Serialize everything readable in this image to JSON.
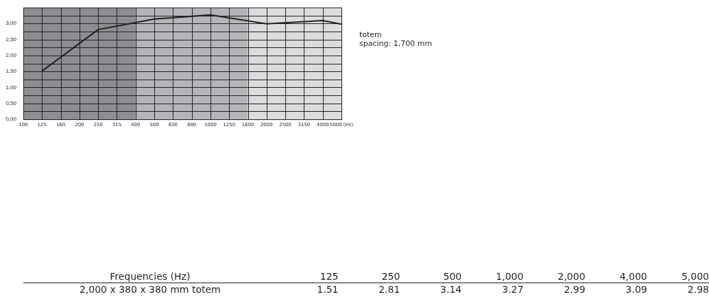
{
  "chart_data": {
    "type": "line",
    "categories": [
      "100",
      "125",
      "160",
      "200",
      "250",
      "315",
      "400",
      "500",
      "630",
      "800",
      "1000",
      "1250",
      "1600",
      "2000",
      "2500",
      "3150",
      "4000",
      "5000 (Hz)"
    ],
    "series": [
      {
        "color": "#231f20",
        "values": [
          null,
          1.51,
          null,
          null,
          2.81,
          null,
          null,
          3.14,
          null,
          null,
          3.27,
          null,
          null,
          2.99,
          null,
          null,
          3.09,
          2.98
        ]
      }
    ],
    "ylim": [
      0,
      3.5
    ],
    "yticks": [
      {
        "value": 0,
        "label": "0,00"
      },
      {
        "value": 0.25,
        "label": null
      },
      {
        "value": 0.5,
        "label": "0,50"
      },
      {
        "value": 0.75,
        "label": null
      },
      {
        "value": 1,
        "label": "1,00"
      },
      {
        "value": 1.25,
        "label": null
      },
      {
        "value": 1.5,
        "label": "1,50"
      },
      {
        "value": 1.75,
        "label": null
      },
      {
        "value": 2,
        "label": "2,00"
      },
      {
        "value": 2.25,
        "label": null
      },
      {
        "value": 2.5,
        "label": "2,50"
      },
      {
        "value": 2.75,
        "label": null
      },
      {
        "value": 3,
        "label": "3,00"
      },
      {
        "value": 3.25,
        "label": null
      },
      {
        "value": 3.5,
        "label": null
      }
    ],
    "grid": true,
    "bands": [
      {
        "axis": "x",
        "from": "100",
        "to": "400",
        "color": "#8d8e91"
      },
      {
        "axis": "x",
        "from": "400",
        "to": "1600",
        "color": "#b4b5b8"
      },
      {
        "axis": "x",
        "from": "1600",
        "to": "5000 (Hz)",
        "color": "#dcdcde"
      }
    ],
    "annotations": [
      "totem",
      "spacing: 1,700 mm",
      "Frequencies (Hz)",
      "2,000 x 380 x 380 mm totem",
      "125",
      "250",
      "500",
      "1,000",
      "2,000",
      "4,000",
      "5,000",
      "1.51",
      "2.81",
      "3.14",
      "3.27",
      "2.99",
      "3.09",
      "2.98"
    ]
  }
}
